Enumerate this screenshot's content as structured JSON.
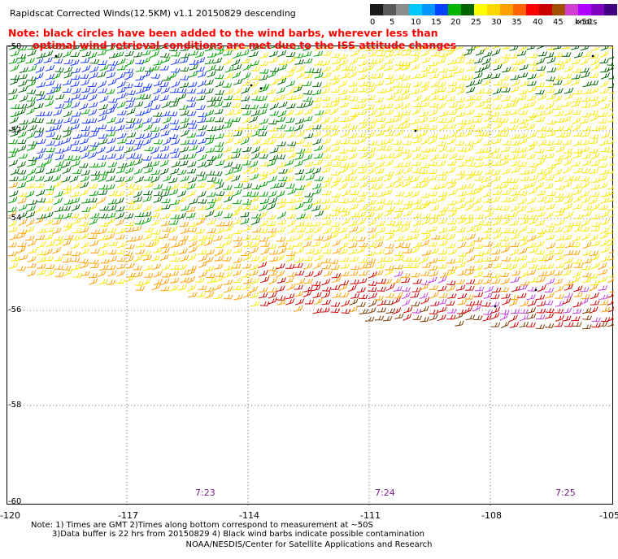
{
  "title": "Rapidscat Corrected Winds(12.5KM) v1.1 20150829 descending",
  "note_line1": "Note: black circles have been added to the wind barbs, wherever less than",
  "note_line2": "optimal wind retrieval conditions are met due to the ISS attitude changes",
  "legend": {
    "unit": "knots",
    "labels": [
      "0",
      "5",
      "10",
      "15",
      "20",
      "25",
      "30",
      "35",
      "40",
      "45",
      ">50"
    ],
    "colors": [
      "#1a1a1a",
      "#5a5a5a",
      "#8c8c8c",
      "#00c8ff",
      "#0096ff",
      "#0040ff",
      "#00b400",
      "#006400",
      "#ffff00",
      "#ffd700",
      "#ffa000",
      "#ff6400",
      "#ff0000",
      "#c80000",
      "#a05000",
      "#d040d0",
      "#b000ff",
      "#8000c0",
      "#400080"
    ]
  },
  "map": {
    "lat_labels": [
      "-50",
      "-52",
      "-54",
      "-56",
      "-58",
      "-60"
    ],
    "lon_labels": [
      "-120",
      "-117",
      "-114",
      "-111",
      "-108",
      "-105"
    ],
    "time_labels": [
      "7:23",
      "7:24",
      "7:25"
    ],
    "lat_range": [
      -60,
      -50
    ],
    "lon_range": [
      -120,
      -105
    ],
    "grid": "dotted"
  },
  "footnotes": {
    "line1": "Note: 1) Times are GMT 2)Times along bottom correspond to measurement at ~50S",
    "line2": "3)Data buffer is 22 hrs from 20150829 4) Black wind barbs indicate possible contamination"
  },
  "credit": "NOAA/NESDIS/Center for Satellite Applications and Research",
  "colors": {
    "note_text": "#ff0000",
    "time_text": "#7a1d8a",
    "blue_barbs": "#1e3cff",
    "green_barbs": "#00a000",
    "dark_green_barbs": "#006400",
    "yellow_barbs": "#f5e600",
    "orange_barbs": "#ffa000",
    "red_barbs": "#d20000",
    "brown_barbs": "#7a3a00",
    "magenta_barbs": "#c040e0"
  }
}
